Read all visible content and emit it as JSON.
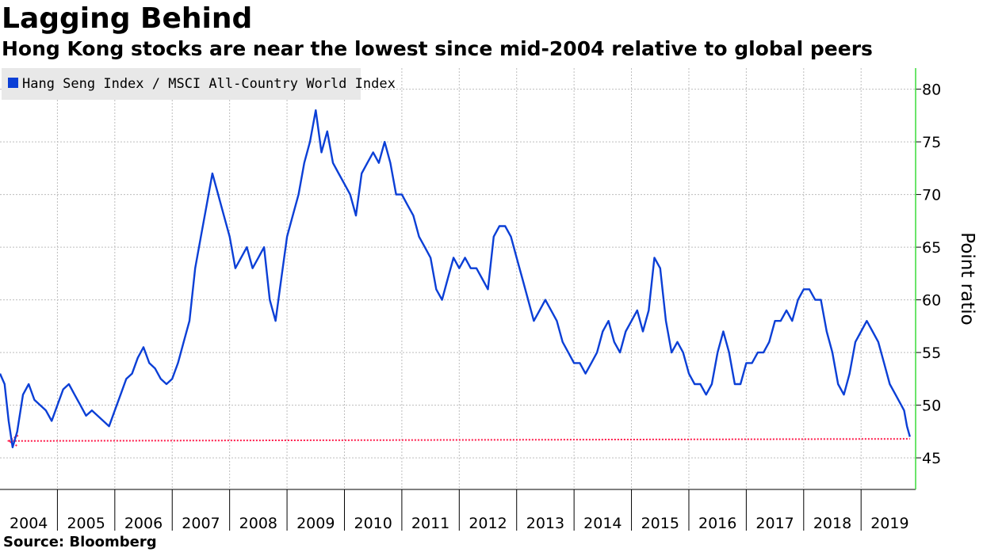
{
  "chart_data": {
    "type": "line",
    "title": "Lagging Behind",
    "subtitle": "Hong Kong stocks are near the lowest since mid-2004 relative to global peers",
    "source": "Source: Bloomberg",
    "ylabel": "Point ratio",
    "xlabel": "",
    "ylim": [
      42,
      82
    ],
    "xlim": [
      2004.0,
      2019.95
    ],
    "yticks": [
      45,
      50,
      55,
      60,
      65,
      70,
      75,
      80
    ],
    "xtick_labels": [
      "2004",
      "2005",
      "2006",
      "2007",
      "2008",
      "2009",
      "2010",
      "2011",
      "2012",
      "2013",
      "2014",
      "2015",
      "2016",
      "2017",
      "2018",
      "2019"
    ],
    "grid": true,
    "legend": {
      "placement": "top-left"
    },
    "colors": {
      "series": "#0b3fd6",
      "reference": "#ff1a4a",
      "right_axis": "#3adb3a"
    },
    "series": [
      {
        "name": "Hang Seng Index / MSCI All-Country World Index",
        "x": [
          2004.0,
          2004.08,
          2004.15,
          2004.22,
          2004.3,
          2004.4,
          2004.5,
          2004.6,
          2004.7,
          2004.8,
          2004.9,
          2005.0,
          2005.1,
          2005.2,
          2005.3,
          2005.4,
          2005.5,
          2005.6,
          2005.7,
          2005.8,
          2005.9,
          2006.0,
          2006.1,
          2006.2,
          2006.3,
          2006.4,
          2006.5,
          2006.6,
          2006.7,
          2006.8,
          2006.9,
          2007.0,
          2007.1,
          2007.2,
          2007.3,
          2007.4,
          2007.5,
          2007.6,
          2007.7,
          2007.8,
          2007.9,
          2008.0,
          2008.1,
          2008.2,
          2008.3,
          2008.4,
          2008.5,
          2008.6,
          2008.7,
          2008.8,
          2008.9,
          2009.0,
          2009.1,
          2009.2,
          2009.3,
          2009.4,
          2009.5,
          2009.6,
          2009.7,
          2009.8,
          2009.9,
          2010.0,
          2010.1,
          2010.2,
          2010.3,
          2010.4,
          2010.5,
          2010.6,
          2010.7,
          2010.8,
          2010.9,
          2011.0,
          2011.1,
          2011.2,
          2011.3,
          2011.4,
          2011.5,
          2011.6,
          2011.7,
          2011.8,
          2011.9,
          2012.0,
          2012.1,
          2012.2,
          2012.3,
          2012.4,
          2012.5,
          2012.6,
          2012.7,
          2012.8,
          2012.9,
          2013.0,
          2013.1,
          2013.2,
          2013.3,
          2013.4,
          2013.5,
          2013.6,
          2013.7,
          2013.8,
          2013.9,
          2014.0,
          2014.1,
          2014.2,
          2014.3,
          2014.4,
          2014.5,
          2014.6,
          2014.7,
          2014.8,
          2014.9,
          2015.0,
          2015.1,
          2015.2,
          2015.3,
          2015.4,
          2015.5,
          2015.6,
          2015.7,
          2015.8,
          2015.9,
          2016.0,
          2016.1,
          2016.2,
          2016.3,
          2016.4,
          2016.5,
          2016.6,
          2016.7,
          2016.8,
          2016.9,
          2017.0,
          2017.1,
          2017.2,
          2017.3,
          2017.4,
          2017.5,
          2017.6,
          2017.7,
          2017.8,
          2017.9,
          2018.0,
          2018.1,
          2018.2,
          2018.3,
          2018.4,
          2018.5,
          2018.6,
          2018.7,
          2018.8,
          2018.9,
          2019.0,
          2019.1,
          2019.2,
          2019.3,
          2019.4,
          2019.5,
          2019.6,
          2019.7,
          2019.75,
          2019.8,
          2019.85
        ],
        "values": [
          53.0,
          52.0,
          48.5,
          46.0,
          47.5,
          51.0,
          52.0,
          50.5,
          50.0,
          49.5,
          48.5,
          50.0,
          51.5,
          52.0,
          51.0,
          50.0,
          49.0,
          49.5,
          49.0,
          48.5,
          48.0,
          49.5,
          51.0,
          52.5,
          53.0,
          54.5,
          55.5,
          54.0,
          53.5,
          52.5,
          52.0,
          52.5,
          54.0,
          56.0,
          58.0,
          63.0,
          66.0,
          69.0,
          72.0,
          70.0,
          68.0,
          66.0,
          63.0,
          64.0,
          65.0,
          63.0,
          64.0,
          65.0,
          60.0,
          58.0,
          62.0,
          66.0,
          68.0,
          70.0,
          73.0,
          75.0,
          78.0,
          74.0,
          76.0,
          73.0,
          72.0,
          71.0,
          70.0,
          68.0,
          72.0,
          73.0,
          74.0,
          73.0,
          75.0,
          73.0,
          70.0,
          70.0,
          69.0,
          68.0,
          66.0,
          65.0,
          64.0,
          61.0,
          60.0,
          62.0,
          64.0,
          63.0,
          64.0,
          63.0,
          63.0,
          62.0,
          61.0,
          66.0,
          67.0,
          67.0,
          66.0,
          64.0,
          62.0,
          60.0,
          58.0,
          59.0,
          60.0,
          59.0,
          58.0,
          56.0,
          55.0,
          54.0,
          54.0,
          53.0,
          54.0,
          55.0,
          57.0,
          58.0,
          56.0,
          55.0,
          57.0,
          58.0,
          59.0,
          57.0,
          59.0,
          64.0,
          63.0,
          58.0,
          55.0,
          56.0,
          55.0,
          53.0,
          52.0,
          52.0,
          51.0,
          52.0,
          55.0,
          57.0,
          55.0,
          52.0,
          52.0,
          54.0,
          54.0,
          55.0,
          55.0,
          56.0,
          58.0,
          58.0,
          59.0,
          58.0,
          60.0,
          61.0,
          61.0,
          60.0,
          60.0,
          57.0,
          55.0,
          52.0,
          51.0,
          53.0,
          56.0,
          57.0,
          58.0,
          57.0,
          56.0,
          54.0,
          52.0,
          51.0,
          50.0,
          49.5,
          48.0,
          47.0
        ]
      }
    ],
    "reference_line": {
      "type": "dotted-arrow",
      "y_start": 46.6,
      "y_end": 46.8,
      "x_start": 2004.15,
      "x_end": 2019.85
    }
  }
}
